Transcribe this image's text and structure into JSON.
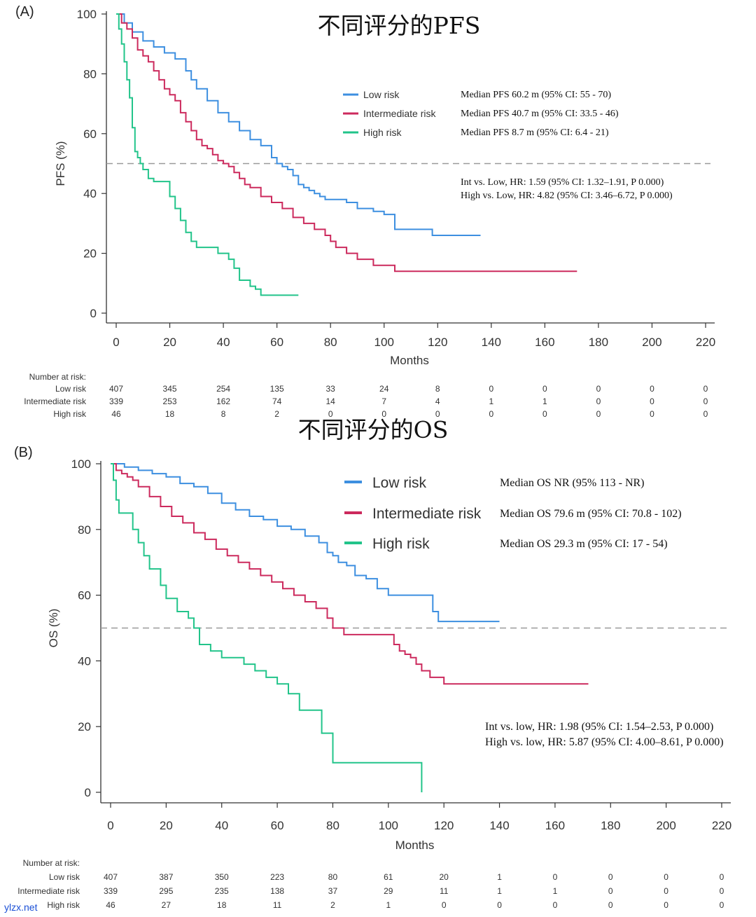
{
  "chart_data": [
    {
      "type": "line",
      "panel_label": "(A)",
      "title": "不同评分的PFS",
      "xlabel": "Months",
      "ylabel": "PFS (%)",
      "xlim": [
        0,
        220
      ],
      "ylim": [
        0,
        100
      ],
      "x_ticks": [
        0,
        20,
        40,
        60,
        80,
        100,
        120,
        140,
        160,
        180,
        200,
        220
      ],
      "y_ticks": [
        0,
        20,
        40,
        60,
        80,
        100
      ],
      "reference_line_y": 50,
      "legend_placement": "top-right",
      "colors": {
        "low": "#3d8fe0",
        "intermediate": "#cc2a5d",
        "high": "#22c48a",
        "reference": "#999999"
      },
      "series": [
        {
          "name": "Low risk",
          "color": "#3d8fe0",
          "x": [
            0,
            3,
            6,
            10,
            14,
            18,
            22,
            26,
            28,
            30,
            34,
            38,
            42,
            46,
            50,
            54,
            58,
            60,
            62,
            64,
            66,
            68,
            70,
            72,
            74,
            76,
            78,
            82,
            86,
            90,
            96,
            100,
            104,
            110,
            118,
            125,
            136
          ],
          "y": [
            100,
            97,
            94,
            91,
            89,
            87,
            85,
            81,
            78,
            75,
            71,
            67,
            64,
            61,
            58,
            56,
            52,
            50,
            49,
            48,
            46,
            43,
            42,
            41,
            40,
            39,
            38,
            38,
            37,
            35,
            34,
            33,
            28,
            28,
            26,
            26,
            26
          ]
        },
        {
          "name": "Intermediate risk",
          "color": "#cc2a5d",
          "x": [
            0,
            2,
            4,
            6,
            8,
            10,
            12,
            14,
            16,
            18,
            20,
            22,
            24,
            26,
            28,
            30,
            32,
            34,
            36,
            38,
            40,
            42,
            44,
            46,
            48,
            50,
            54,
            58,
            62,
            66,
            70,
            74,
            78,
            80,
            82,
            86,
            90,
            96,
            104,
            120,
            150,
            172
          ],
          "y": [
            100,
            97,
            95,
            92,
            88,
            86,
            84,
            81,
            78,
            75,
            73,
            71,
            67,
            64,
            61,
            58,
            56,
            55,
            53,
            51,
            50,
            49,
            47,
            45,
            43,
            42,
            39,
            37,
            35,
            32,
            30,
            28,
            26,
            24,
            22,
            20,
            18,
            16,
            14,
            14,
            14,
            14
          ]
        },
        {
          "name": "High risk",
          "color": "#22c48a",
          "x": [
            0,
            1,
            2,
            3,
            4,
            5,
            6,
            7,
            8,
            9,
            10,
            12,
            14,
            18,
            20,
            22,
            24,
            26,
            28,
            30,
            34,
            38,
            42,
            44,
            46,
            50,
            52,
            54,
            60,
            68
          ],
          "y": [
            100,
            95,
            90,
            84,
            78,
            72,
            62,
            54,
            52,
            50,
            48,
            45,
            44,
            44,
            39,
            35,
            31,
            27,
            24,
            22,
            22,
            20,
            18,
            15,
            11,
            9,
            8,
            6,
            6,
            6
          ]
        }
      ],
      "legend_stats": [
        "Median PFS 60.2 m (95% CI: 55 - 70)",
        "Median PFS 40.7 m (95% CI: 33.5 - 46)",
        "Median PFS 8.7 m (95% CI: 6.4 - 21)"
      ],
      "hr_text": [
        "Int vs. Low, HR: 1.59 (95% CI: 1.32–1.91, P  0.000)",
        "High vs. Low, HR: 4.82 (95% CI: 3.46–6.72, P 0.000)"
      ],
      "risk_table": {
        "header": "Number at risk:",
        "rows": [
          {
            "label": "Low risk",
            "values": [
              "407",
              "345",
              "254",
              "135",
              "33",
              "24",
              "8",
              "0",
              "0",
              "0",
              "0",
              "0"
            ]
          },
          {
            "label": "Intermediate risk",
            "values": [
              "339",
              "253",
              "162",
              "74",
              "14",
              "7",
              "4",
              "1",
              "1",
              "0",
              "0",
              "0"
            ]
          },
          {
            "label": "High risk",
            "values": [
              "46",
              "18",
              "8",
              "2",
              "0",
              "0",
              "0",
              "0",
              "0",
              "0",
              "0",
              "0"
            ]
          }
        ]
      }
    },
    {
      "type": "line",
      "panel_label": "(B)",
      "title": "不同评分的OS",
      "xlabel": "Months",
      "ylabel": "OS (%)",
      "xlim": [
        0,
        220
      ],
      "ylim": [
        0,
        100
      ],
      "x_ticks": [
        0,
        20,
        40,
        60,
        80,
        100,
        120,
        140,
        160,
        180,
        200,
        220
      ],
      "y_ticks": [
        0,
        20,
        40,
        60,
        80,
        100
      ],
      "reference_line_y": 50,
      "legend_placement": "top-right",
      "colors": {
        "low": "#3d8fe0",
        "intermediate": "#cc2a5d",
        "high": "#22c48a",
        "reference": "#999999"
      },
      "series": [
        {
          "name": "Low risk",
          "color": "#3d8fe0",
          "x": [
            0,
            5,
            10,
            15,
            20,
            25,
            30,
            35,
            40,
            45,
            50,
            55,
            60,
            65,
            70,
            75,
            78,
            80,
            82,
            85,
            88,
            92,
            96,
            100,
            104,
            108,
            113,
            116,
            118,
            130,
            140
          ],
          "y": [
            100,
            99,
            98,
            97,
            96,
            94,
            93,
            91,
            88,
            86,
            84,
            83,
            81,
            80,
            78,
            76,
            73,
            72,
            70,
            69,
            66,
            65,
            62,
            60,
            60,
            60,
            60,
            55,
            52,
            52,
            52
          ]
        },
        {
          "name": "Intermediate risk",
          "color": "#cc2a5d",
          "x": [
            0,
            2,
            4,
            6,
            8,
            10,
            14,
            18,
            22,
            26,
            30,
            34,
            38,
            42,
            46,
            50,
            54,
            58,
            62,
            66,
            70,
            74,
            78,
            80,
            84,
            88,
            92,
            96,
            98,
            100,
            102,
            104,
            106,
            108,
            110,
            112,
            115,
            118,
            120,
            140,
            172
          ],
          "y": [
            100,
            98,
            97,
            96,
            95,
            93,
            90,
            87,
            84,
            82,
            79,
            77,
            74,
            72,
            70,
            68,
            66,
            64,
            62,
            60,
            58,
            56,
            53,
            50,
            48,
            48,
            48,
            48,
            48,
            48,
            45,
            43,
            42,
            41,
            39,
            37,
            35,
            35,
            33,
            33,
            33
          ]
        },
        {
          "name": "High risk",
          "color": "#22c48a",
          "x": [
            0,
            1,
            2,
            3,
            5,
            8,
            10,
            12,
            14,
            18,
            20,
            24,
            28,
            30,
            32,
            36,
            40,
            44,
            48,
            52,
            56,
            60,
            64,
            68,
            72,
            76,
            80,
            84,
            96,
            112
          ],
          "y": [
            100,
            95,
            89,
            85,
            85,
            80,
            76,
            72,
            68,
            63,
            59,
            55,
            53,
            50,
            45,
            43,
            41,
            41,
            39,
            37,
            35,
            33,
            30,
            25,
            25,
            18,
            9,
            9,
            9,
            0
          ]
        }
      ],
      "legend_stats": [
        "Median OS NR  (95% 113 - NR)",
        "Median OS 79.6 m (95% CI: 70.8 - 102)",
        "Median OS 29.3 m (95% CI: 17 - 54)"
      ],
      "hr_text": [
        "Int vs. low, HR: 1.98 (95% CI: 1.54–2.53, P  0.000)",
        "High vs. low, HR: 5.87 (95% CI: 4.00–8.61, P 0.000)"
      ],
      "risk_table": {
        "header": "Number at risk:",
        "rows": [
          {
            "label": "Low risk",
            "values": [
              "407",
              "387",
              "350",
              "223",
              "80",
              "61",
              "20",
              "1",
              "0",
              "0",
              "0",
              "0"
            ]
          },
          {
            "label": "Intermediate risk",
            "values": [
              "339",
              "295",
              "235",
              "138",
              "37",
              "29",
              "11",
              "1",
              "1",
              "0",
              "0",
              "0"
            ]
          },
          {
            "label": "High risk",
            "values": [
              "46",
              "27",
              "18",
              "11",
              "2",
              "1",
              "0",
              "0",
              "0",
              "0",
              "0",
              "0"
            ]
          }
        ]
      }
    }
  ],
  "watermark": "ylzx.net"
}
